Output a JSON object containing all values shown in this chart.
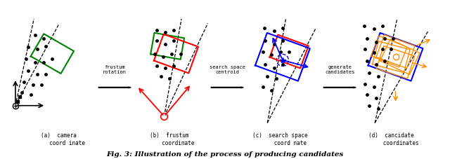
{
  "title": "Fig. 3: Illustration of the process of producing candidates",
  "panels": [
    {
      "label": "(a)  camera\n      coord inate"
    },
    {
      "label": "(b)  frustum\n      coordinate"
    },
    {
      "label": "(c)  search space\n      coord nate"
    },
    {
      "label": "(d)  cancidate\n      coordinates"
    }
  ],
  "arrow_labels": [
    "frustum\nrotation",
    "search space\ncentroid",
    "generate\ncandidates"
  ],
  "bg_color": "#ffffff"
}
